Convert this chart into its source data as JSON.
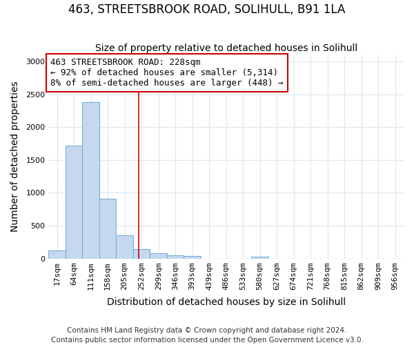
{
  "title": "463, STREETSBROOK ROAD, SOLIHULL, B91 1LA",
  "subtitle": "Size of property relative to detached houses in Solihull",
  "xlabel": "Distribution of detached houses by size in Solihull",
  "ylabel": "Number of detached properties",
  "bar_labels": [
    "17sqm",
    "64sqm",
    "111sqm",
    "158sqm",
    "205sqm",
    "252sqm",
    "299sqm",
    "346sqm",
    "393sqm",
    "439sqm",
    "486sqm",
    "533sqm",
    "580sqm",
    "627sqm",
    "674sqm",
    "721sqm",
    "768sqm",
    "815sqm",
    "862sqm",
    "909sqm",
    "956sqm"
  ],
  "bar_values": [
    125,
    1720,
    2380,
    910,
    355,
    140,
    80,
    50,
    40,
    0,
    0,
    0,
    30,
    0,
    0,
    0,
    0,
    0,
    0,
    0,
    0
  ],
  "bar_color": "#c5d8f0",
  "bar_edgecolor": "#7bafd4",
  "property_label": "463 STREETSBROOK ROAD: 228sqm",
  "annotation_line1": "← 92% of detached houses are smaller (5,314)",
  "annotation_line2": "8% of semi-detached houses are larger (448) →",
  "vline_x_index": 4.83,
  "ylim": [
    0,
    3100
  ],
  "yticks": [
    0,
    500,
    1000,
    1500,
    2000,
    2500,
    3000
  ],
  "footer": "Contains HM Land Registry data © Crown copyright and database right 2024.\nContains public sector information licensed under the Open Government Licence v3.0.",
  "bg_color": "#ffffff",
  "plot_bg_color": "#ffffff",
  "grid_color": "#dde6f0",
  "annotation_box_color": "#ffffff",
  "annotation_box_edgecolor": "#cc0000",
  "vline_color": "#cc0000",
  "title_fontsize": 12,
  "subtitle_fontsize": 10,
  "axis_label_fontsize": 10,
  "tick_fontsize": 8,
  "annotation_fontsize": 9
}
